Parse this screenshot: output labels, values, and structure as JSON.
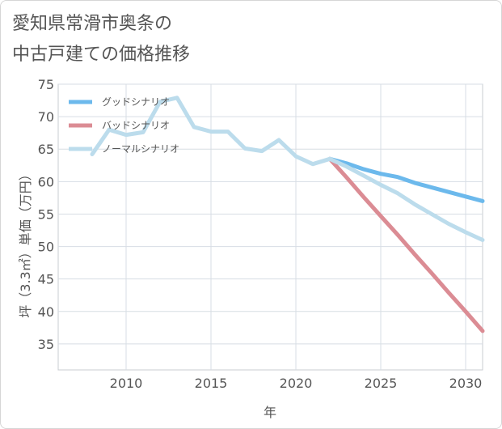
{
  "page": {
    "title_line1": "愛知県常滑市奥条の",
    "title_line2": "中古戸建ての価格推移"
  },
  "chart_data": {
    "type": "line",
    "title": "愛知県常滑市奥条の中古戸建ての価格推移",
    "xlabel": "年",
    "ylabel": "坪（3.3㎡）単価（万円）",
    "xlim": [
      2006,
      2031
    ],
    "ylim": [
      31,
      75
    ],
    "xticks": [
      2010,
      2015,
      2020,
      2025,
      2030
    ],
    "yticks": [
      35,
      40,
      45,
      50,
      55,
      60,
      65,
      70,
      75
    ],
    "grid": true,
    "legend_position": "top-left",
    "series": [
      {
        "name": "グッドシナリオ",
        "color": "#6cb9ec",
        "x": [
          2022,
          2023,
          2024,
          2025,
          2026,
          2027,
          2028,
          2029,
          2030,
          2031
        ],
        "values": [
          63.5,
          62.8,
          61.9,
          61.2,
          60.7,
          59.8,
          59.1,
          58.4,
          57.7,
          57.0
        ]
      },
      {
        "name": "バッドシナリオ",
        "color": "#db8c94",
        "x": [
          2022,
          2023,
          2024,
          2025,
          2026,
          2027,
          2028,
          2029,
          2030,
          2031
        ],
        "values": [
          63.5,
          60.6,
          57.6,
          54.7,
          51.8,
          48.8,
          45.9,
          42.9,
          40.0,
          37.0
        ]
      },
      {
        "name": "ノーマルシナリオ",
        "color": "#bcdcec",
        "x": [
          2008,
          2009,
          2010,
          2011,
          2012,
          2013,
          2014,
          2015,
          2016,
          2017,
          2018,
          2019,
          2020,
          2021,
          2022,
          2023,
          2024,
          2025,
          2026,
          2027,
          2028,
          2029,
          2030,
          2031
        ],
        "values": [
          64.2,
          68.0,
          67.2,
          67.6,
          72.3,
          72.9,
          68.4,
          67.7,
          67.7,
          65.1,
          64.7,
          66.4,
          63.9,
          62.7,
          63.5,
          62.3,
          60.9,
          59.5,
          58.2,
          56.5,
          55.0,
          53.5,
          52.2,
          51.0
        ]
      }
    ]
  }
}
